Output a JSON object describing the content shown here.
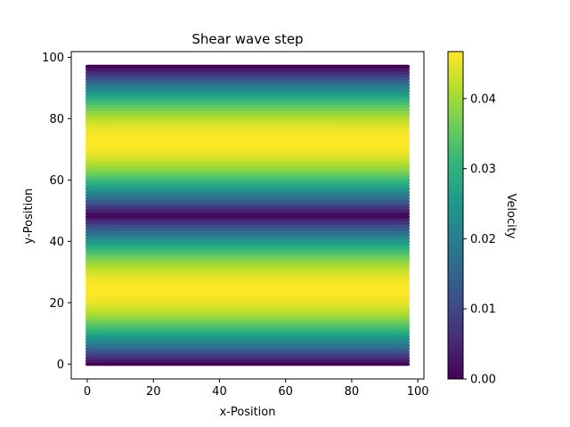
{
  "chart_data": {
    "type": "heatmap",
    "title": "Shear wave step",
    "xlabel": "x-Position",
    "ylabel": "y-Position",
    "xlim": [
      -4.85,
      101.85
    ],
    "ylim": [
      -4.85,
      101.85
    ],
    "x_ticks": [
      0,
      20,
      40,
      60,
      80,
      100
    ],
    "y_ticks": [
      0,
      20,
      40,
      60,
      80,
      100
    ],
    "grid": false,
    "colormap": "viridis",
    "colorbar": {
      "label": "Velocity",
      "min": 0.0,
      "max": 0.0467,
      "ticks": [
        0.0,
        0.01,
        0.02,
        0.03,
        0.04
      ],
      "tick_labels": [
        "0.00",
        "0.01",
        "0.02",
        "0.03",
        "0.04"
      ]
    },
    "grid_size": [
      98,
      98
    ],
    "field": {
      "description_formula": "velocity(y) = 0.0467 * |sin(2*pi*y/97)|, constant along x",
      "amplitude": 0.0467,
      "period": 97,
      "x_range": [
        0,
        97
      ],
      "y_range": [
        0,
        97
      ]
    },
    "profile_y": [
      0,
      12,
      24,
      36,
      48,
      60,
      73,
      85,
      97
    ],
    "profile_velocity": [
      0.0,
      0.033,
      0.0467,
      0.034,
      0.0015,
      0.032,
      0.0467,
      0.033,
      0.0
    ]
  },
  "colors": {
    "viridis_stops": [
      "#440154",
      "#482878",
      "#3e4a89",
      "#31688e",
      "#26828e",
      "#1f9e89",
      "#35b779",
      "#6ece58",
      "#b5de2b",
      "#fde725"
    ]
  }
}
